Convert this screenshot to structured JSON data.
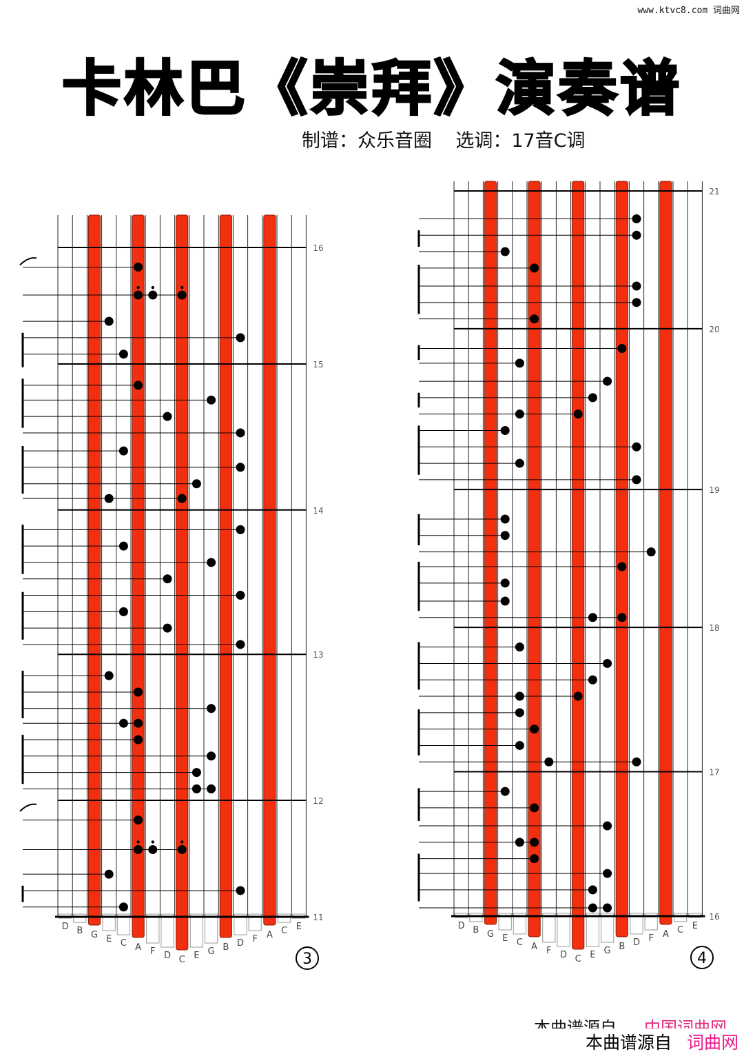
{
  "watermark": "www.ktvc8.com 词曲网",
  "title": "卡林巴《崇拜》演奏谱",
  "subtitle": "制谱：众乐音圈    选调：17音C调",
  "footer": {
    "prefix": "本曲谱源自",
    "site": "词曲网",
    "clipped_prefix": "本曲谱源自",
    "clipped_site": "中国词曲网"
  },
  "colors": {
    "tine_red": "#f2300f",
    "note": "#000000",
    "footer_link": "#ee1a8c"
  },
  "keys": [
    "D",
    "B",
    "G",
    "E",
    "C",
    "A",
    "F",
    "D",
    "C",
    "E",
    "G",
    "B",
    "D",
    "F",
    "A",
    "C",
    "E"
  ],
  "red_keys": [
    2,
    5,
    8,
    11,
    14
  ],
  "staves": [
    {
      "page_number": "3",
      "measures": [
        {
          "label": "16",
          "beat": 0
        },
        {
          "label": "15",
          "beat": 7.1
        },
        {
          "label": "14",
          "beat": 16
        },
        {
          "label": "13",
          "beat": 24.8
        },
        {
          "label": "12",
          "beat": 33.7
        },
        {
          "label": "11",
          "beat": 40.8
        }
      ],
      "end_beat": 40.8,
      "slurs": [
        0.9,
        34.2
      ],
      "brackets": [
        [
          5.2,
          7.3
        ],
        [
          8,
          11
        ],
        [
          12.1,
          15
        ],
        [
          16.9,
          19.9
        ],
        [
          21,
          23.9
        ],
        [
          25.8,
          28.7
        ],
        [
          29.7,
          32.7
        ],
        [
          38.9,
          39.9
        ]
      ],
      "notes": [
        {
          "beat": 1.2,
          "keys": [
            5
          ]
        },
        {
          "beat": 2.9,
          "keys": [
            5,
            6,
            8
          ],
          "dotted": true
        },
        {
          "beat": 4.5,
          "keys": [
            3
          ]
        },
        {
          "beat": 5.5,
          "keys": [
            12
          ]
        },
        {
          "beat": 6.5,
          "keys": [
            4
          ]
        },
        {
          "beat": 8.4,
          "keys": [
            5
          ]
        },
        {
          "beat": 9.3,
          "keys": [
            10
          ]
        },
        {
          "beat": 10.3,
          "keys": [
            7
          ]
        },
        {
          "beat": 11.3,
          "keys": [
            12
          ]
        },
        {
          "beat": 12.4,
          "keys": [
            4
          ]
        },
        {
          "beat": 13.4,
          "keys": [
            12
          ]
        },
        {
          "beat": 14.4,
          "keys": [
            9
          ]
        },
        {
          "beat": 15.3,
          "keys": [
            3,
            8
          ]
        },
        {
          "beat": 17.2,
          "keys": [
            12
          ]
        },
        {
          "beat": 18.2,
          "keys": [
            4
          ]
        },
        {
          "beat": 19.2,
          "keys": [
            10
          ]
        },
        {
          "beat": 20.2,
          "keys": [
            7
          ]
        },
        {
          "beat": 21.2,
          "keys": [
            12
          ]
        },
        {
          "beat": 22.2,
          "keys": [
            4
          ]
        },
        {
          "beat": 23.2,
          "keys": [
            7
          ]
        },
        {
          "beat": 24.2,
          "keys": [
            12
          ]
        },
        {
          "beat": 26.1,
          "keys": [
            3
          ]
        },
        {
          "beat": 27.1,
          "keys": [
            5
          ]
        },
        {
          "beat": 28.1,
          "keys": [
            10
          ]
        },
        {
          "beat": 29,
          "keys": [
            4,
            5
          ]
        },
        {
          "beat": 30,
          "keys": [
            5
          ]
        },
        {
          "beat": 31,
          "keys": [
            10
          ]
        },
        {
          "beat": 32,
          "keys": [
            9
          ]
        },
        {
          "beat": 33,
          "keys": [
            9,
            10
          ]
        },
        {
          "beat": 34.9,
          "keys": [
            5
          ]
        },
        {
          "beat": 36.7,
          "keys": [
            5,
            6,
            8
          ],
          "dotted": true
        },
        {
          "beat": 38.2,
          "keys": [
            3
          ]
        },
        {
          "beat": 39.2,
          "keys": [
            12
          ]
        },
        {
          "beat": 40.2,
          "keys": [
            4
          ]
        }
      ]
    },
    {
      "page_number": "4",
      "measures": [
        {
          "label": "21",
          "beat": 0
        },
        {
          "label": "20",
          "beat": 8.4
        },
        {
          "label": "19",
          "beat": 18.2
        },
        {
          "label": "18",
          "beat": 26.6
        },
        {
          "label": "17",
          "beat": 35.4
        },
        {
          "label": "16",
          "beat": 44.2
        }
      ],
      "end_beat": 44.2,
      "slurs": [],
      "brackets": [
        [
          2.4,
          3.4
        ],
        [
          4.5,
          7.5
        ],
        [
          9.4,
          10.3
        ],
        [
          12.3,
          13.2
        ],
        [
          14.3,
          17.3
        ],
        [
          19.7,
          21.6
        ],
        [
          22.6,
          25.6
        ],
        [
          27.5,
          30.4
        ],
        [
          31.6,
          34.4
        ],
        [
          36.4,
          38.4
        ],
        [
          40.4,
          43.3
        ]
      ],
      "notes": [
        {
          "beat": 1.7,
          "keys": [
            12
          ]
        },
        {
          "beat": 2.7,
          "keys": [
            12
          ]
        },
        {
          "beat": 3.7,
          "keys": [
            3
          ]
        },
        {
          "beat": 4.7,
          "keys": [
            5
          ]
        },
        {
          "beat": 5.8,
          "keys": [
            12
          ]
        },
        {
          "beat": 6.8,
          "keys": [
            12
          ]
        },
        {
          "beat": 7.8,
          "keys": [
            5
          ]
        },
        {
          "beat": 9.6,
          "keys": [
            11
          ]
        },
        {
          "beat": 10.5,
          "keys": [
            4
          ]
        },
        {
          "beat": 11.6,
          "keys": [
            10
          ]
        },
        {
          "beat": 12.6,
          "keys": [
            9
          ]
        },
        {
          "beat": 13.6,
          "keys": [
            4,
            8
          ]
        },
        {
          "beat": 14.6,
          "keys": [
            3
          ]
        },
        {
          "beat": 15.6,
          "keys": [
            12
          ]
        },
        {
          "beat": 16.6,
          "keys": [
            4
          ]
        },
        {
          "beat": 17.6,
          "keys": [
            12
          ]
        },
        {
          "beat": 20,
          "keys": [
            3
          ]
        },
        {
          "beat": 21,
          "keys": [
            3
          ]
        },
        {
          "beat": 22,
          "keys": [
            13
          ]
        },
        {
          "beat": 22.9,
          "keys": [
            11
          ]
        },
        {
          "beat": 23.9,
          "keys": [
            3
          ]
        },
        {
          "beat": 25,
          "keys": [
            3
          ]
        },
        {
          "beat": 26,
          "keys": [
            9,
            11
          ]
        },
        {
          "beat": 27.8,
          "keys": [
            4
          ]
        },
        {
          "beat": 28.8,
          "keys": [
            10
          ]
        },
        {
          "beat": 29.8,
          "keys": [
            9
          ]
        },
        {
          "beat": 30.8,
          "keys": [
            4,
            8
          ]
        },
        {
          "beat": 31.8,
          "keys": [
            4
          ]
        },
        {
          "beat": 32.8,
          "keys": [
            5
          ]
        },
        {
          "beat": 33.8,
          "keys": [
            4
          ]
        },
        {
          "beat": 34.8,
          "keys": [
            6,
            12
          ]
        },
        {
          "beat": 36.6,
          "keys": [
            3
          ]
        },
        {
          "beat": 37.6,
          "keys": [
            5
          ]
        },
        {
          "beat": 38.7,
          "keys": [
            10
          ]
        },
        {
          "beat": 39.7,
          "keys": [
            4,
            5
          ]
        },
        {
          "beat": 40.7,
          "keys": [
            5
          ]
        },
        {
          "beat": 41.6,
          "keys": [
            10
          ]
        },
        {
          "beat": 42.6,
          "keys": [
            9
          ]
        },
        {
          "beat": 43.7,
          "keys": [
            9,
            10
          ]
        }
      ]
    }
  ]
}
